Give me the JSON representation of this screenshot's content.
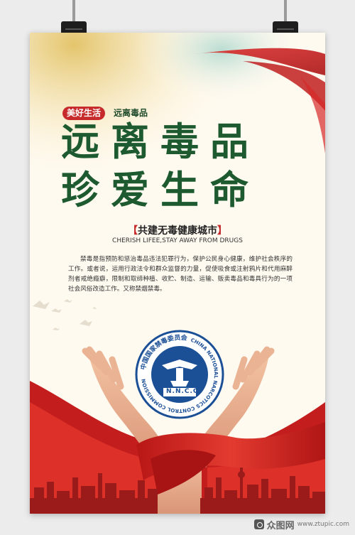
{
  "poster": {
    "tag_pill": "美好生活",
    "tag_text": "远离毒品",
    "title_line1": "远离毒品",
    "title_line2": "珍爱生命",
    "slogan_cn": "共建无毒健康城市",
    "slogan_bracket_left": "【",
    "slogan_bracket_right": "】",
    "slogan_en": "CHERISH LIFEE,STAY AWAY FROM DRUGS",
    "paragraph": "禁毒是指预防和惩治毒品违法犯罪行为，保护公民身心健康，维护社会秩序的工作。或者说，运用行政法令和群众监督的力量，促使吸食或注射鸦片和代用麻醉剂者戒绝瘾癖，限制和取缔种植、收贮、制造、运输、贩卖毒品和毒具行为的一项社会风俗改造工作。又称禁烟禁毒。",
    "emblem": {
      "ring_cn": "中国国家禁毒委员会",
      "ring_en": "CHINA NATIONAL NARCOTICS CONTROL COMMISSION",
      "center_text": "N.N.C.C"
    }
  },
  "watermark": {
    "logo": "众图网",
    "url": "www.ztupic.com"
  },
  "colors": {
    "title_green": "#1d5a2f",
    "accent_red": "#c62a2a",
    "emblem_blue": "#1b4f96"
  }
}
